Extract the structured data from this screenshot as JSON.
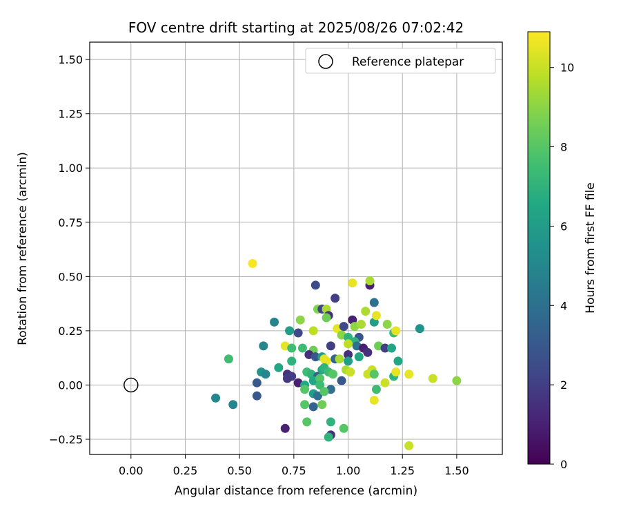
{
  "chart_data": {
    "type": "scatter",
    "title": "FOV centre drift starting at 2025/08/26 07:02:42",
    "xlabel": "Angular distance from reference (arcmin)",
    "ylabel": "Rotation from reference (arcmin)",
    "xlim": [
      -0.19,
      1.71
    ],
    "ylim": [
      -0.32,
      1.58
    ],
    "xticks": [
      "0.00",
      "0.25",
      "0.50",
      "0.75",
      "1.00",
      "1.25",
      "1.50"
    ],
    "yticks": [
      "−0.25",
      "0.00",
      "0.25",
      "0.50",
      "0.75",
      "1.00",
      "1.25",
      "1.50"
    ],
    "grid": true,
    "legend": {
      "placement": "top-right",
      "entries": [
        "Reference platepar"
      ]
    },
    "colorbar": {
      "label": "Hours from first FF file",
      "range": [
        0,
        10.9
      ],
      "ticks": [
        "0",
        "2",
        "4",
        "6",
        "8",
        "10"
      ],
      "colormap": "viridis"
    },
    "reference": {
      "x": 0.0,
      "y": 0.0
    },
    "points": [
      [
        0.56,
        0.56,
        10.8
      ],
      [
        0.85,
        0.46,
        2.5
      ],
      [
        0.94,
        0.4,
        2.0
      ],
      [
        1.1,
        0.46,
        1.0
      ],
      [
        1.1,
        0.48,
        9.5
      ],
      [
        1.02,
        0.47,
        10.5
      ],
      [
        1.12,
        0.38,
        4.0
      ],
      [
        0.86,
        0.35,
        8.8
      ],
      [
        0.88,
        0.35,
        2.2
      ],
      [
        0.9,
        0.35,
        9.5
      ],
      [
        0.91,
        0.32,
        1.5
      ],
      [
        0.9,
        0.31,
        8.5
      ],
      [
        1.02,
        0.3,
        1.0
      ],
      [
        0.66,
        0.29,
        5.0
      ],
      [
        0.78,
        0.3,
        9.0
      ],
      [
        1.12,
        0.29,
        6.0
      ],
      [
        1.08,
        0.34,
        9.5
      ],
      [
        1.13,
        0.32,
        10.5
      ],
      [
        1.18,
        0.28,
        9.0
      ],
      [
        1.33,
        0.26,
        5.5
      ],
      [
        0.95,
        0.26,
        10.5
      ],
      [
        0.98,
        0.27,
        2.5
      ],
      [
        1.03,
        0.27,
        9.0
      ],
      [
        1.06,
        0.28,
        9.5
      ],
      [
        0.73,
        0.25,
        6.0
      ],
      [
        0.77,
        0.24,
        2.5
      ],
      [
        0.84,
        0.25,
        9.8
      ],
      [
        0.97,
        0.23,
        9.0
      ],
      [
        1.0,
        0.22,
        7.0
      ],
      [
        1.05,
        0.22,
        3.0
      ],
      [
        1.21,
        0.24,
        7.5
      ],
      [
        1.22,
        0.25,
        10.5
      ],
      [
        1.03,
        0.2,
        7.0
      ],
      [
        0.61,
        0.18,
        5.0
      ],
      [
        0.71,
        0.18,
        10.5
      ],
      [
        0.74,
        0.17,
        7.5
      ],
      [
        0.79,
        0.17,
        7.5
      ],
      [
        0.84,
        0.16,
        8.5
      ],
      [
        0.92,
        0.18,
        2.0
      ],
      [
        1.0,
        0.19,
        9.8
      ],
      [
        1.04,
        0.18,
        4.0
      ],
      [
        1.07,
        0.17,
        1.0
      ],
      [
        1.09,
        0.15,
        1.5
      ],
      [
        1.14,
        0.18,
        8.5
      ],
      [
        1.17,
        0.17,
        2.0
      ],
      [
        1.2,
        0.17,
        6.5
      ],
      [
        0.45,
        0.12,
        7.5
      ],
      [
        0.74,
        0.11,
        7.0
      ],
      [
        0.82,
        0.14,
        1.5
      ],
      [
        0.85,
        0.13,
        3.0
      ],
      [
        0.88,
        0.13,
        6.0
      ],
      [
        0.89,
        0.12,
        10.5
      ],
      [
        0.94,
        0.12,
        3.5
      ],
      [
        0.96,
        0.12,
        9.5
      ],
      [
        1.0,
        0.14,
        1.5
      ],
      [
        1.0,
        0.11,
        6.0
      ],
      [
        1.05,
        0.13,
        6.5
      ],
      [
        1.23,
        0.11,
        6.5
      ],
      [
        0.9,
        0.11,
        10.5
      ],
      [
        0.68,
        0.08,
        6.5
      ],
      [
        0.6,
        0.06,
        5.5
      ],
      [
        0.62,
        0.05,
        5.0
      ],
      [
        0.72,
        0.05,
        1.5
      ],
      [
        0.74,
        0.04,
        2.0
      ],
      [
        0.81,
        0.06,
        7.5
      ],
      [
        0.83,
        0.05,
        7.0
      ],
      [
        0.86,
        0.04,
        3.5
      ],
      [
        0.88,
        0.07,
        6.5
      ],
      [
        0.89,
        0.08,
        7.0
      ],
      [
        0.91,
        0.06,
        7.5
      ],
      [
        0.93,
        0.05,
        8.0
      ],
      [
        0.99,
        0.07,
        9.5
      ],
      [
        1.01,
        0.06,
        10.0
      ],
      [
        1.09,
        0.05,
        10.0
      ],
      [
        1.11,
        0.07,
        10.0
      ],
      [
        1.12,
        0.05,
        8.0
      ],
      [
        1.21,
        0.04,
        7.0
      ],
      [
        1.22,
        0.06,
        10.5
      ],
      [
        1.28,
        0.05,
        10.5
      ],
      [
        1.39,
        0.03,
        10.0
      ],
      [
        1.5,
        0.02,
        9.0
      ],
      [
        0.58,
        0.01,
        3.0
      ],
      [
        0.72,
        0.03,
        1.8
      ],
      [
        0.77,
        0.01,
        1.0
      ],
      [
        0.8,
        0.0,
        6.5
      ],
      [
        0.84,
        0.02,
        6.5
      ],
      [
        0.87,
        0.03,
        8.0
      ],
      [
        0.87,
        0.0,
        7.5
      ],
      [
        0.92,
        -0.02,
        4.0
      ],
      [
        0.97,
        0.02,
        3.0
      ],
      [
        1.13,
        -0.02,
        7.5
      ],
      [
        1.17,
        0.01,
        10.0
      ],
      [
        0.8,
        -0.02,
        8.0
      ],
      [
        0.84,
        -0.04,
        6.0
      ],
      [
        0.86,
        -0.05,
        4.0
      ],
      [
        0.89,
        -0.03,
        8.0
      ],
      [
        0.58,
        -0.05,
        3.0
      ],
      [
        0.39,
        -0.06,
        5.0
      ],
      [
        0.47,
        -0.09,
        5.0
      ],
      [
        0.8,
        -0.09,
        8.0
      ],
      [
        0.84,
        -0.1,
        3.5
      ],
      [
        0.88,
        -0.09,
        8.5
      ],
      [
        1.12,
        -0.07,
        10.5
      ],
      [
        0.81,
        -0.17,
        8.0
      ],
      [
        0.92,
        -0.17,
        7.0
      ],
      [
        0.71,
        -0.2,
        1.0
      ],
      [
        0.98,
        -0.2,
        8.0
      ],
      [
        0.92,
        -0.23,
        1.5
      ],
      [
        0.91,
        -0.24,
        7.0
      ],
      [
        1.28,
        -0.28,
        10.0
      ]
    ]
  }
}
